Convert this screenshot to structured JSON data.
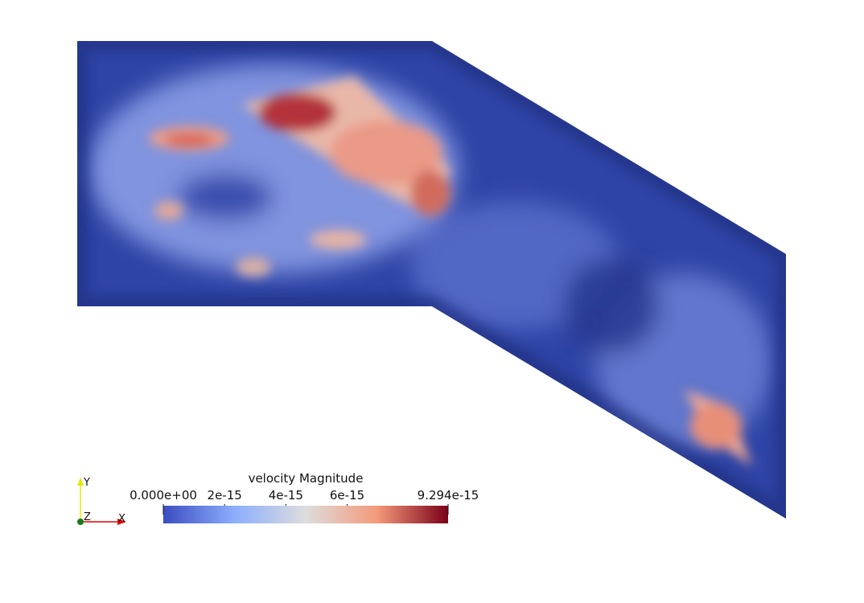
{
  "view": {
    "background": "#ffffff"
  },
  "colorbar": {
    "title": "velocity Magnitude",
    "range": [
      0,
      9.294e-15
    ],
    "min_label": "0.000e+00",
    "max_label": "9.294e-15",
    "ticks": [
      {
        "value": 2e-15,
        "label": "2e-15"
      },
      {
        "value": 4e-15,
        "label": "4e-15"
      },
      {
        "value": 6e-15,
        "label": "6e-15"
      }
    ],
    "colormap": "cool-to-warm",
    "colormap_stops": [
      "#3b4cc0",
      "#8caefd",
      "#dddddd",
      "#f49a7b",
      "#b40426"
    ]
  },
  "orientation_axes": {
    "x_label": "X",
    "y_label": "Y",
    "z_label": "Z",
    "x_color": "#e00000",
    "y_color": "#e8e800",
    "z_color": "#1a7a1a"
  }
}
